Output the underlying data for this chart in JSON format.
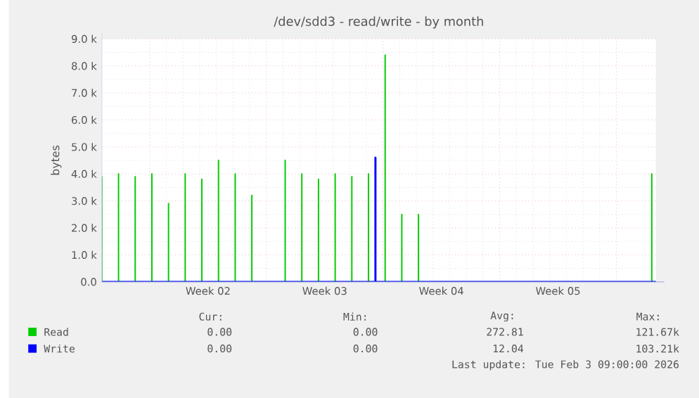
{
  "chart_data": {
    "type": "line",
    "title": "/dev/sdd3 - read/write - by month",
    "ylabel": "bytes",
    "xlim": [
      "2026-01-01T03:00",
      "2026-02-03T09:00"
    ],
    "xticks": [
      {
        "value": "2026-01-04T00:00",
        "label": null
      },
      {
        "value": "2026-01-11T00:00",
        "label": null
      },
      {
        "value": "2026-01-18T00:00",
        "label": null
      },
      {
        "value": "2026-01-25T00:00",
        "label": null
      },
      {
        "value": "2026-02-01T00:00",
        "label": null
      },
      {
        "value": "2026-01-07T12:00",
        "label": "Week 02"
      },
      {
        "value": "2026-01-14T12:00",
        "label": "Week 03"
      },
      {
        "value": "2026-01-21T12:00",
        "label": "Week 04"
      },
      {
        "value": "2026-01-28T12:00",
        "label": "Week 05"
      }
    ],
    "ylim": [
      0,
      9000
    ],
    "yticks": [
      {
        "value": 0,
        "label": "0.0"
      },
      {
        "value": 1000,
        "label": "1.0 k"
      },
      {
        "value": 2000,
        "label": "2.0 k"
      },
      {
        "value": 3000,
        "label": "3.0 k"
      },
      {
        "value": 4000,
        "label": "4.0 k"
      },
      {
        "value": 5000,
        "label": "5.0 k"
      },
      {
        "value": 6000,
        "label": "6.0 k"
      },
      {
        "value": 7000,
        "label": "7.0 k"
      },
      {
        "value": 8000,
        "label": "8.0 k"
      },
      {
        "value": 9000,
        "label": "9.0 k"
      }
    ],
    "grid": true,
    "legend": "bottom",
    "series": [
      {
        "name": "Read",
        "color": "#00cc00",
        "x": [
          "2026-01-01T03:00",
          "2026-01-01T03:00",
          "2026-01-01T03:00",
          "2026-01-02T03:00",
          "2026-01-02T03:00",
          "2026-01-02T03:00",
          "2026-01-03T03:00",
          "2026-01-03T03:00",
          "2026-01-03T03:00",
          "2026-01-04T03:00",
          "2026-01-04T03:00",
          "2026-01-04T03:00",
          "2026-01-05T03:00",
          "2026-01-05T03:00",
          "2026-01-05T03:00",
          "2026-01-06T03:00",
          "2026-01-06T03:00",
          "2026-01-06T03:00",
          "2026-01-07T03:00",
          "2026-01-07T03:00",
          "2026-01-07T03:00",
          "2026-01-08T03:00",
          "2026-01-08T03:00",
          "2026-01-08T03:00",
          "2026-01-09T03:00",
          "2026-01-09T03:00",
          "2026-01-09T03:00",
          "2026-01-10T03:00",
          "2026-01-10T03:00",
          "2026-01-10T03:00",
          "2026-01-12T03:00",
          "2026-01-12T03:00",
          "2026-01-12T03:00",
          "2026-01-13T03:00",
          "2026-01-13T03:00",
          "2026-01-13T03:00",
          "2026-01-14T03:00",
          "2026-01-14T03:00",
          "2026-01-14T03:00",
          "2026-01-15T03:00",
          "2026-01-15T03:00",
          "2026-01-15T03:00",
          "2026-01-16T03:00",
          "2026-01-16T03:00",
          "2026-01-16T03:00",
          "2026-01-17T03:00",
          "2026-01-17T03:00",
          "2026-01-17T03:00",
          "2026-01-18T03:00",
          "2026-01-18T03:00",
          "2026-01-18T03:00",
          "2026-01-19T03:00",
          "2026-01-19T03:00",
          "2026-01-19T03:00",
          "2026-01-20T03:00",
          "2026-01-20T03:00",
          "2026-01-20T03:00",
          "2026-02-03T03:00",
          "2026-02-03T03:00",
          "2026-02-03T03:00",
          "2026-02-03T09:00"
        ],
        "values": [
          0,
          3900,
          0,
          0,
          4000,
          0,
          0,
          3900,
          0,
          0,
          4000,
          0,
          0,
          2900,
          0,
          0,
          4000,
          0,
          0,
          3800,
          0,
          0,
          4500,
          0,
          0,
          4000,
          0,
          0,
          3200,
          0,
          0,
          4500,
          0,
          0,
          4000,
          0,
          0,
          3800,
          0,
          0,
          4000,
          0,
          0,
          3900,
          0,
          0,
          4000,
          0,
          0,
          8400,
          0,
          0,
          2500,
          0,
          0,
          2500,
          0,
          0,
          4000,
          0,
          0
        ]
      },
      {
        "name": "Write",
        "color": "#0000ff",
        "x": [
          "2026-01-01T03:00",
          "2026-01-17T13:00",
          "2026-01-17T13:00",
          "2026-01-17T13:00",
          "2026-02-03T09:00"
        ],
        "values": [
          0,
          0,
          4600,
          0,
          0
        ]
      }
    ],
    "annotations": [
      "Cur:",
      "Min:",
      "Avg:",
      "Max:",
      "0.00",
      "0.00",
      "272.81",
      "121.67k",
      "0.00",
      "0.00",
      "12.04",
      "103.21k",
      "Last update: Tue Feb  3 09:00:00 2026"
    ]
  }
}
